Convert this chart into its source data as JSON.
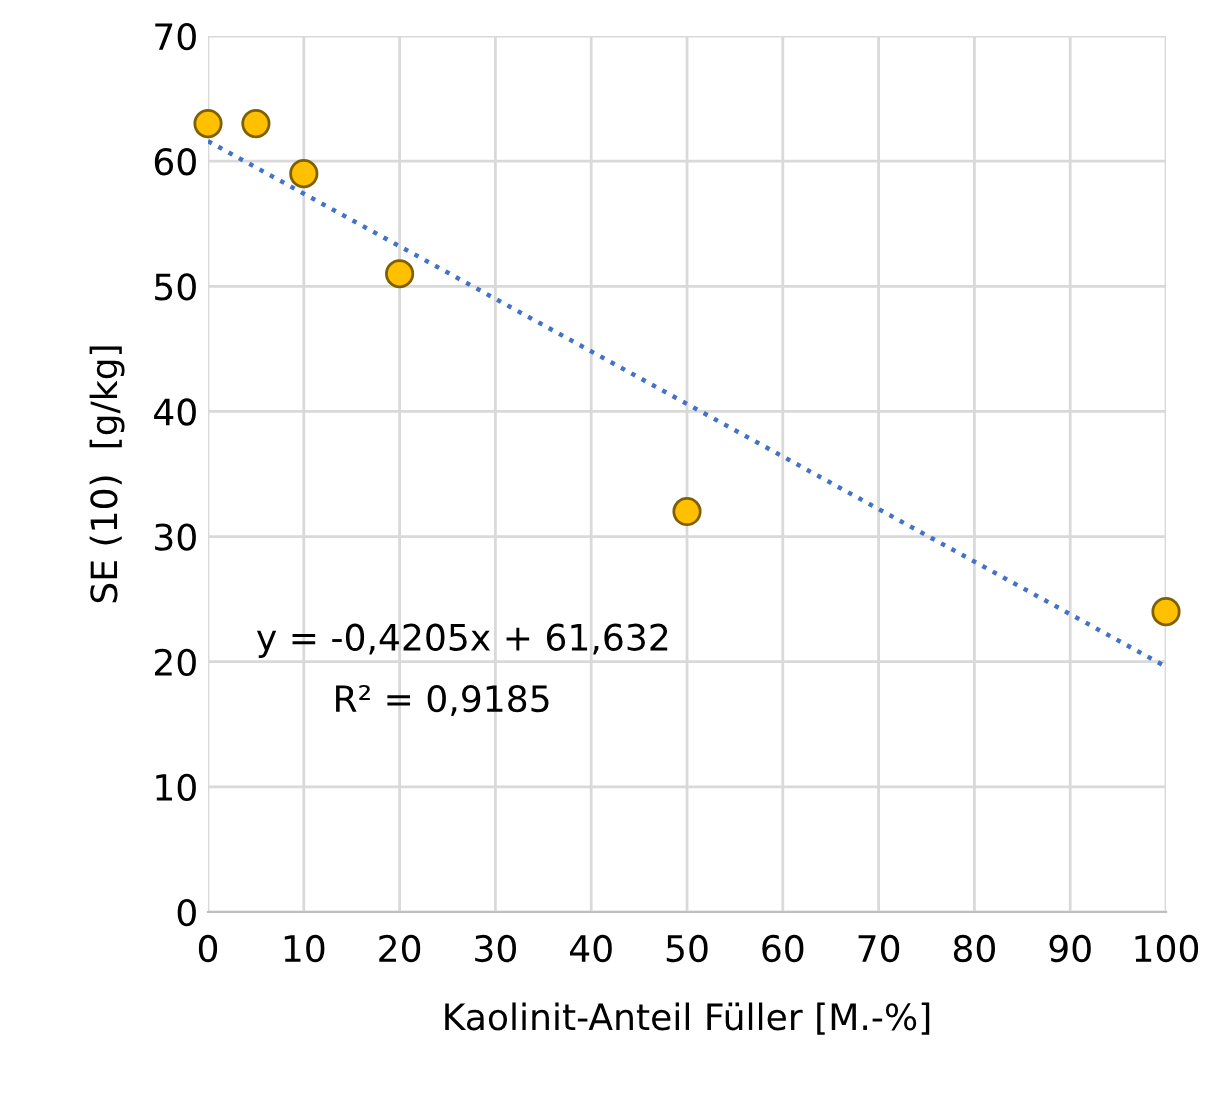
{
  "chart_data": {
    "type": "scatter",
    "xlabel": "Kaolinit-Anteil Füller [M.-%]",
    "ylabel": "SE (10)  [g/kg]",
    "series": [
      {
        "color": "#ffc000",
        "x": [
          0,
          5,
          10,
          20,
          50,
          100
        ],
        "values": [
          63,
          63,
          59,
          51,
          32,
          24
        ],
        "marker": "circle"
      },
      {
        "type": "line",
        "color": "#4472c4",
        "x": [
          0,
          100
        ],
        "values": [
          61.6,
          19.6
        ],
        "line_style": "dotted",
        "marker": "none"
      }
    ],
    "annotations": [
      "y = -0,4205x + 61,632",
      "R² = 0,9185"
    ],
    "xlim": [
      0,
      100
    ],
    "xticks": [
      0,
      10,
      20,
      30,
      40,
      50,
      60,
      70,
      80,
      90,
      100
    ],
    "ylim": [
      0,
      70
    ],
    "yticks": [
      0,
      10,
      20,
      30,
      40,
      50,
      60,
      70
    ],
    "grid": true,
    "legend": false
  }
}
